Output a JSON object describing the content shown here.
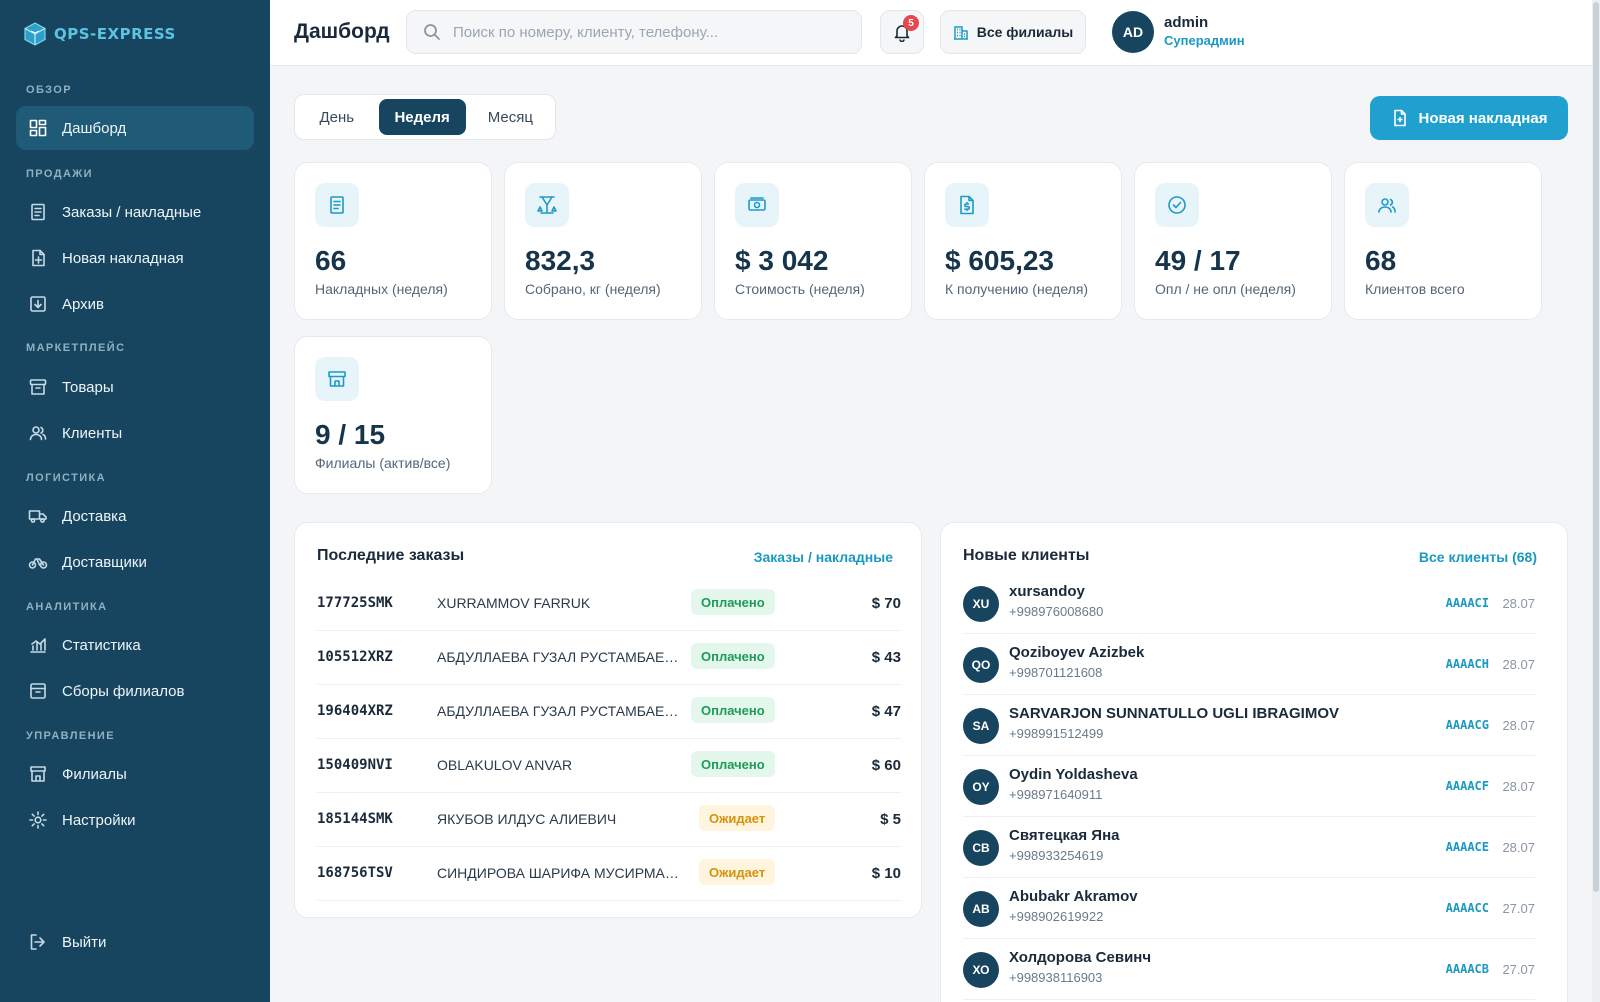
{
  "brand": {
    "name": "QPS-EXPRESS"
  },
  "sidebar": {
    "sections": [
      {
        "title": "ОБЗОР",
        "items": [
          {
            "label": "Дашборд",
            "icon": "dashboard-icon",
            "active": true
          }
        ]
      },
      {
        "title": "ПРОДАЖИ",
        "items": [
          {
            "label": "Заказы / накладные",
            "icon": "orders-icon"
          },
          {
            "label": "Новая накладная",
            "icon": "new-invoice-icon"
          },
          {
            "label": "Архив",
            "icon": "archive-icon"
          }
        ]
      },
      {
        "title": "МАРКЕТПЛЕЙС",
        "items": [
          {
            "label": "Товары",
            "icon": "products-icon"
          },
          {
            "label": "Клиенты",
            "icon": "clients-icon"
          }
        ]
      },
      {
        "title": "ЛОГИСТИКА",
        "items": [
          {
            "label": "Доставка",
            "icon": "truck-icon"
          },
          {
            "label": "Доставщики",
            "icon": "courier-icon"
          }
        ]
      },
      {
        "title": "АНАЛИТИКА",
        "items": [
          {
            "label": "Статистика",
            "icon": "chart-icon"
          },
          {
            "label": "Сборы филиалов",
            "icon": "branch-fees-icon"
          }
        ]
      },
      {
        "title": "УПРАВЛЕНИЕ",
        "items": [
          {
            "label": "Филиалы",
            "icon": "store-icon"
          },
          {
            "label": "Настройки",
            "icon": "gear-icon"
          }
        ]
      }
    ],
    "logout": "Выйти"
  },
  "header": {
    "title": "Дашборд",
    "search_placeholder": "Поиск по номеру, клиенту, телефону...",
    "notifications_count": "5",
    "branch_filter": "Все филиалы",
    "user": {
      "initials": "AD",
      "name": "admin",
      "role": "Суперадмин"
    }
  },
  "period_tabs": [
    {
      "label": "День",
      "active": false
    },
    {
      "label": "Неделя",
      "active": true
    },
    {
      "label": "Месяц",
      "active": false
    }
  ],
  "new_invoice_button": "Новая накладная",
  "stats": [
    {
      "value": "66",
      "label": "Накладных (неделя)",
      "icon": "invoice-icon"
    },
    {
      "value": "832,3",
      "label": "Собрано, кг (неделя)",
      "icon": "scale-icon"
    },
    {
      "value": "$ 3 042",
      "label": "Стоимость (неделя)",
      "icon": "money-icon"
    },
    {
      "value": "$ 605,23",
      "label": "К получению (неделя)",
      "icon": "dollar-doc-icon"
    },
    {
      "value": "49 / 17",
      "label": "Опл / не опл (неделя)",
      "icon": "check-circle-icon"
    },
    {
      "value": "68",
      "label": "Клиентов всего",
      "icon": "users-icon"
    },
    {
      "value": "9 / 15",
      "label": "Филиалы (актив/все)",
      "icon": "store-icon"
    }
  ],
  "recent_orders": {
    "title": "Последние заказы",
    "link": "Заказы / накладные",
    "rows": [
      {
        "id": "177725SMK",
        "client": "XURRAMMOV FARRUK",
        "status": "Оплачено",
        "paid": true,
        "amount": "$ 70"
      },
      {
        "id": "105512XRZ",
        "client": "АБДУЛЛАЕВА ГУЗАЛ РУСТАМБАЕВНА",
        "status": "Оплачено",
        "paid": true,
        "amount": "$ 43"
      },
      {
        "id": "196404XRZ",
        "client": "АБДУЛЛАЕВА ГУЗАЛ РУСТАМБАЕВНА",
        "status": "Оплачено",
        "paid": true,
        "amount": "$ 47"
      },
      {
        "id": "150409NVI",
        "client": "OBLAKULOV ANVAR",
        "status": "Оплачено",
        "paid": true,
        "amount": "$ 60"
      },
      {
        "id": "185144SMK",
        "client": "ЯКУБОВ ИЛДУС АЛИЕВИЧ",
        "status": "Ожидает",
        "paid": false,
        "amount": "$ 5"
      },
      {
        "id": "168756TSV",
        "client": "СИНДИРОВА ШАРИФА МУСИРМАНОВНА",
        "status": "Ожидает",
        "paid": false,
        "amount": "$ 10"
      }
    ]
  },
  "new_clients": {
    "title": "Новые клиенты",
    "link": "Все клиенты (68)",
    "rows": [
      {
        "initials": "XU",
        "name": "xursandoy",
        "phone": "+998976008680",
        "code": "AAAACI",
        "date": "28.07"
      },
      {
        "initials": "QO",
        "name": "Qoziboyev Azizbek",
        "phone": "+998701121608",
        "code": "AAAACH",
        "date": "28.07"
      },
      {
        "initials": "SA",
        "name": "SARVARJON SUNNATULLO UGLI IBRAGIMOV",
        "phone": "+998991512499",
        "code": "AAAACG",
        "date": "28.07"
      },
      {
        "initials": "OY",
        "name": "Oydin Yoldasheva",
        "phone": "+998971640911",
        "code": "AAAACF",
        "date": "28.07"
      },
      {
        "initials": "СВ",
        "name": "Святецкая Яна",
        "phone": "+998933254619",
        "code": "AAAACE",
        "date": "28.07"
      },
      {
        "initials": "AB",
        "name": "Abubakr Akramov",
        "phone": "+998902619922",
        "code": "AAAACC",
        "date": "27.07"
      },
      {
        "initials": "ХО",
        "name": "Холдорова Севинч",
        "phone": "+998938116903",
        "code": "AAAACB",
        "date": "27.07"
      }
    ]
  },
  "colors": {
    "sidebar": "#17455f",
    "accent": "#1fa0cf",
    "paid": "#1e9b57",
    "pending": "#d4930c"
  }
}
